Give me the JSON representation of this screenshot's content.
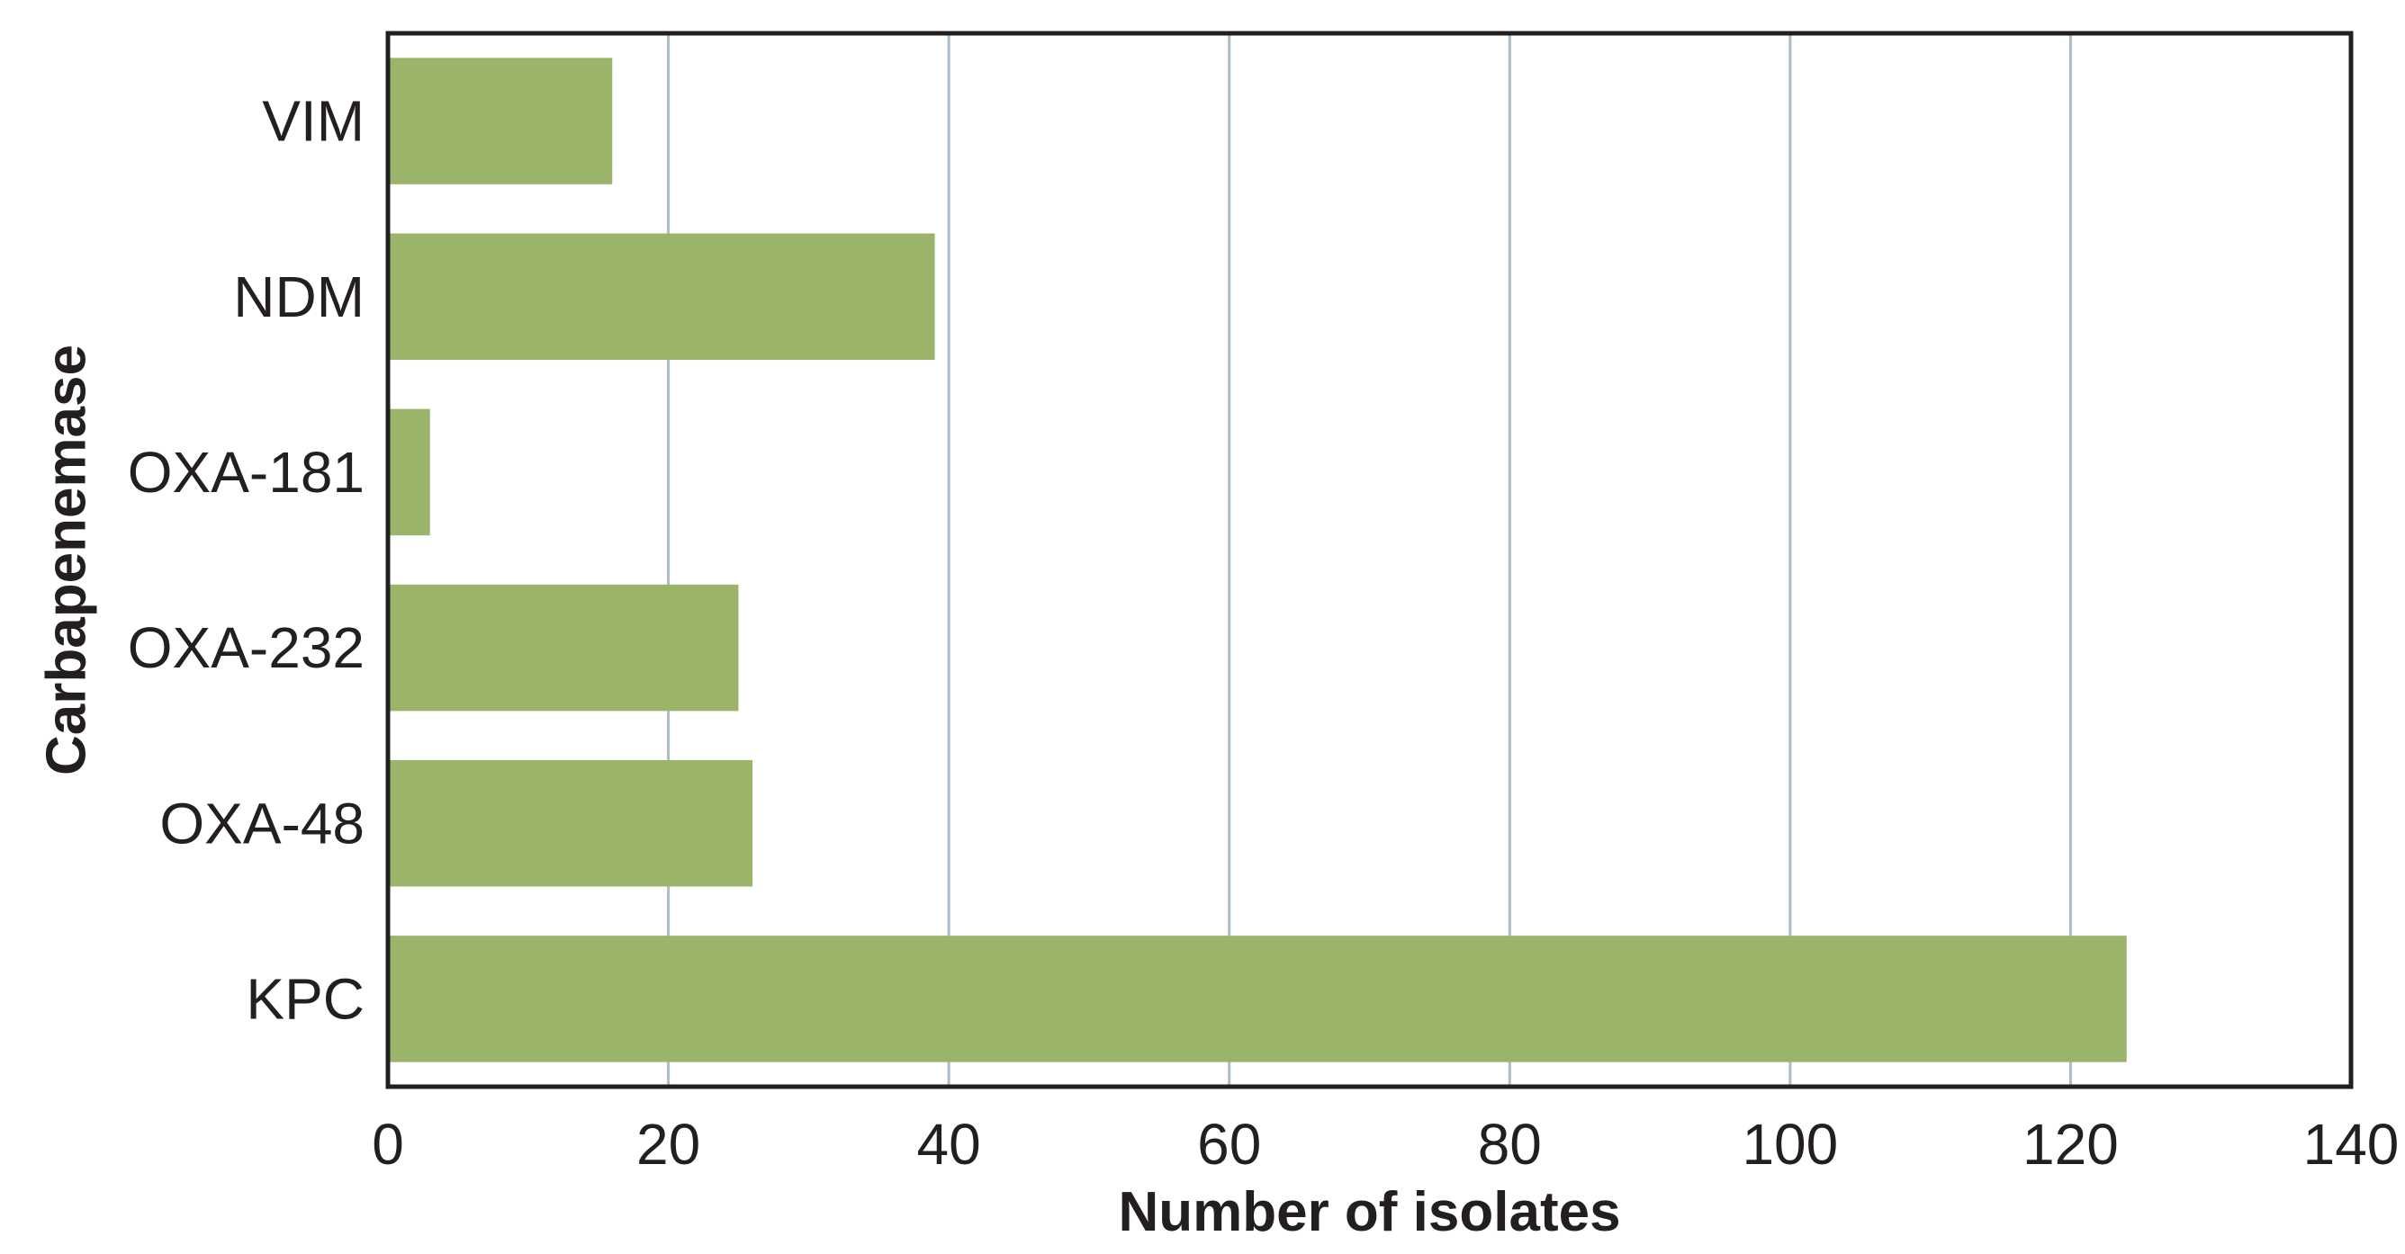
{
  "chart_data": {
    "type": "bar",
    "orientation": "horizontal",
    "title": "",
    "xlabel": "Number of isolates",
    "ylabel": "Carbapenemase",
    "categories": [
      "VIM",
      "NDM",
      "OXA-181",
      "OXA-232",
      "OXA-48",
      "KPC"
    ],
    "values": [
      16,
      39,
      3,
      25,
      26,
      124
    ],
    "xlim": [
      0,
      140
    ],
    "xticks": [
      0,
      20,
      40,
      60,
      80,
      100,
      120,
      140
    ],
    "grid": "vertical",
    "legend": "none",
    "colors": {
      "bar": "#9ab56a",
      "grid": "#aabdc8",
      "axis": "#231f20",
      "text": "#231f20"
    }
  }
}
